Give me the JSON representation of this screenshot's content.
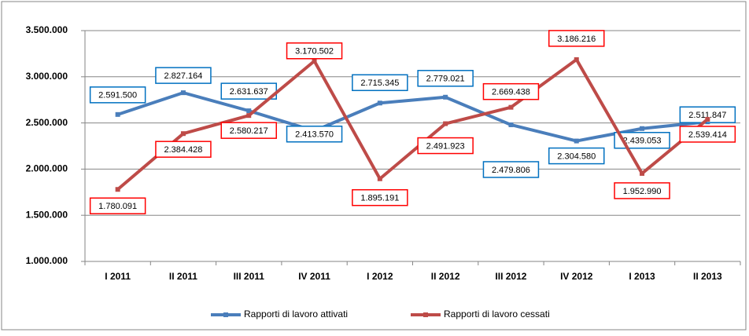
{
  "chart_data": {
    "type": "line",
    "categories": [
      "I 2011",
      "II 2011",
      "III 2011",
      "IV 2011",
      "I 2012",
      "II 2012",
      "III 2012",
      "IV 2012",
      "I 2013",
      "II 2013"
    ],
    "series": [
      {
        "name": "Rapporti di lavoro attivati",
        "color": "#4a7ebb",
        "values": [
          2591500,
          2827164,
          2631637,
          2413570,
          2715345,
          2779021,
          2479806,
          2304580,
          2439053,
          2511847
        ],
        "value_labels": [
          "2.591.500",
          "2.827.164",
          "2.631.637",
          "2.413.570",
          "2.715.345",
          "2.779.021",
          "2.479.806",
          "2.304.580",
          "2.439.053",
          "2.511.847"
        ]
      },
      {
        "name": "Rapporti di lavoro cessati",
        "color": "#be4b48",
        "values": [
          1780091,
          2384428,
          2580217,
          3170502,
          1895191,
          2491923,
          2669438,
          3186216,
          1952990,
          2539414
        ],
        "value_labels": [
          "1.780.091",
          "2.384.428",
          "2.580.217",
          "3.170.502",
          "1.895.191",
          "2.491.923",
          "2.669.438",
          "3.186.216",
          "1.952.990",
          "2.539.414"
        ]
      }
    ],
    "ylim": [
      1000000,
      3500000
    ],
    "yticks": [
      {
        "value": 1000000,
        "label": "1.000.000"
      },
      {
        "value": 1500000,
        "label": "1.500.000"
      },
      {
        "value": 2000000,
        "label": "2.000.000"
      },
      {
        "value": 2500000,
        "label": "2.500.000"
      },
      {
        "value": 3000000,
        "label": "3.000.000"
      },
      {
        "value": 3500000,
        "label": "3.500.000"
      }
    ],
    "grid": true,
    "legend": "bottom"
  }
}
